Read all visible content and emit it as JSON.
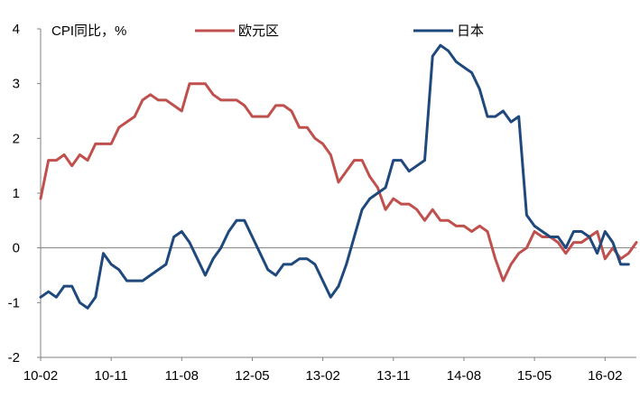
{
  "chart_data": {
    "type": "line",
    "title": "CPI同比，%",
    "xlabel": "",
    "ylabel": "",
    "ylim": [
      -2,
      4
    ],
    "y_ticks": [
      4,
      3,
      2,
      1,
      0,
      -1,
      -2
    ],
    "y_tick_labels": [
      "4",
      "3",
      "2",
      "1",
      "0",
      "-1",
      "-2"
    ],
    "x_tick_labels": [
      "10-02",
      "10-11",
      "11-08",
      "12-05",
      "13-02",
      "13-11",
      "14-08",
      "15-05",
      "16-02"
    ],
    "x_tick_index": [
      0,
      9,
      18,
      27,
      36,
      45,
      54,
      63,
      72
    ],
    "zero_line": true,
    "grid": false,
    "legend_position": "top",
    "series": [
      {
        "name": "欧元区",
        "color": "#c0504d",
        "values": [
          0.9,
          1.6,
          1.6,
          1.7,
          1.5,
          1.7,
          1.6,
          1.9,
          1.9,
          1.9,
          2.2,
          2.3,
          2.4,
          2.7,
          2.8,
          2.7,
          2.7,
          2.6,
          2.5,
          3.0,
          3.0,
          3.0,
          2.8,
          2.7,
          2.7,
          2.7,
          2.6,
          2.4,
          2.4,
          2.4,
          2.6,
          2.6,
          2.5,
          2.2,
          2.2,
          2.0,
          1.9,
          1.7,
          1.2,
          1.4,
          1.6,
          1.6,
          1.3,
          1.1,
          0.7,
          0.9,
          0.8,
          0.8,
          0.7,
          0.5,
          0.7,
          0.5,
          0.5,
          0.4,
          0.4,
          0.3,
          0.4,
          0.3,
          -0.2,
          -0.6,
          -0.3,
          -0.1,
          0.0,
          0.3,
          0.2,
          0.2,
          0.1,
          -0.1,
          0.1,
          0.1,
          0.2,
          0.3,
          -0.2,
          0.0,
          -0.2,
          -0.1,
          0.1
        ]
      },
      {
        "name": "日本",
        "color": "#1f497d",
        "values": [
          -0.9,
          -0.8,
          -0.9,
          -0.7,
          -0.7,
          -1.0,
          -1.1,
          -0.9,
          -0.1,
          -0.3,
          -0.4,
          -0.6,
          -0.6,
          -0.6,
          -0.5,
          -0.4,
          -0.3,
          0.2,
          0.3,
          0.1,
          -0.2,
          -0.5,
          -0.2,
          0.0,
          0.3,
          0.5,
          0.5,
          0.2,
          -0.1,
          -0.4,
          -0.5,
          -0.3,
          -0.3,
          -0.2,
          -0.2,
          -0.3,
          -0.6,
          -0.9,
          -0.7,
          -0.3,
          0.2,
          0.7,
          0.9,
          1.0,
          1.1,
          1.6,
          1.6,
          1.4,
          1.5,
          1.6,
          3.5,
          3.7,
          3.6,
          3.4,
          3.3,
          3.2,
          2.9,
          2.4,
          2.4,
          2.5,
          2.3,
          2.4,
          0.6,
          0.4,
          0.3,
          0.2,
          0.2,
          0.0,
          0.3,
          0.3,
          0.2,
          -0.1,
          0.3,
          0.1,
          -0.3,
          -0.3
        ]
      }
    ]
  }
}
